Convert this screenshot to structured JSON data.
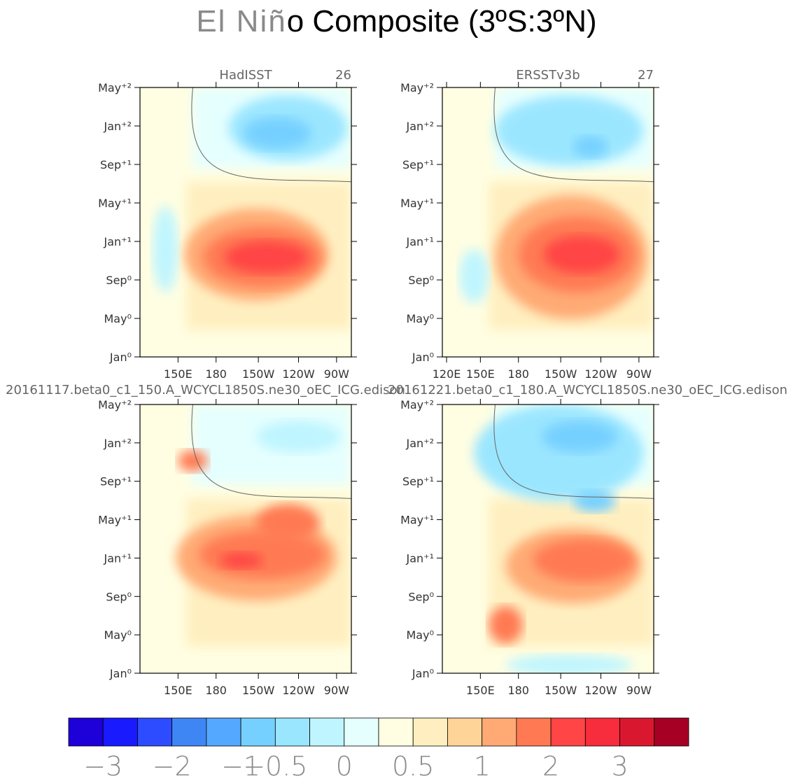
{
  "chart_data": {
    "type": "heatmap",
    "title_light": "El Niñ",
    "title_dark": "o Composite (3ºS:3ºN)",
    "y_ticks": [
      "May⁺²",
      "Jan⁺²",
      "Sep⁺¹",
      "May⁺¹",
      "Jan⁺¹",
      "Sep⁰",
      "May⁰",
      "Jan⁰"
    ],
    "panels": [
      {
        "name": "HadISST",
        "count": "26",
        "x_ticks": [
          "150E",
          "180",
          "150W",
          "120W",
          "90W"
        ],
        "features": [
          {
            "kind": "warm",
            "level": 8,
            "x": 0.55,
            "y": 0.62,
            "rx": 0.34,
            "ry": 0.17
          },
          {
            "kind": "warm",
            "level": 7,
            "x": 0.58,
            "y": 0.63,
            "rx": 0.28,
            "ry": 0.11
          },
          {
            "kind": "warm",
            "level": 6,
            "x": 0.6,
            "y": 0.63,
            "rx": 0.2,
            "ry": 0.06
          },
          {
            "kind": "cool",
            "level": 2,
            "x": 0.7,
            "y": 0.15,
            "rx": 0.28,
            "ry": 0.12
          },
          {
            "kind": "cool",
            "level": 3,
            "x": 0.65,
            "y": 0.17,
            "rx": 0.16,
            "ry": 0.06
          },
          {
            "kind": "cool",
            "level": 1,
            "x": 0.12,
            "y": 0.6,
            "rx": 0.06,
            "ry": 0.16
          }
        ]
      },
      {
        "name": "ERSSTv3b",
        "count": "27",
        "x_ticks": [
          "120E",
          "150E",
          "180",
          "150W",
          "120W",
          "90W"
        ],
        "features": [
          {
            "kind": "warm",
            "level": 8,
            "x": 0.61,
            "y": 0.63,
            "rx": 0.36,
            "ry": 0.23
          },
          {
            "kind": "warm",
            "level": 7,
            "x": 0.64,
            "y": 0.62,
            "rx": 0.28,
            "ry": 0.14
          },
          {
            "kind": "warm",
            "level": 6,
            "x": 0.66,
            "y": 0.62,
            "rx": 0.18,
            "ry": 0.07
          },
          {
            "kind": "cool",
            "level": 2,
            "x": 0.6,
            "y": 0.16,
            "rx": 0.35,
            "ry": 0.13
          },
          {
            "kind": "cool",
            "level": 3,
            "x": 0.7,
            "y": 0.22,
            "rx": 0.08,
            "ry": 0.04
          },
          {
            "kind": "cool",
            "level": 1,
            "x": 0.15,
            "y": 0.7,
            "rx": 0.07,
            "ry": 0.1
          }
        ]
      },
      {
        "name": "20161117.beta0_c1_150.A_WCYCL1850S.ne30_oEC_ICG.edison",
        "count": "",
        "x_ticks": [
          "150E",
          "180",
          "150W",
          "120W",
          "90W"
        ],
        "features": [
          {
            "kind": "warm",
            "level": 8,
            "x": 0.55,
            "y": 0.57,
            "rx": 0.38,
            "ry": 0.16
          },
          {
            "kind": "warm",
            "level": 7,
            "x": 0.58,
            "y": 0.56,
            "rx": 0.3,
            "ry": 0.09
          },
          {
            "kind": "warm",
            "level": 6,
            "x": 0.48,
            "y": 0.58,
            "rx": 0.1,
            "ry": 0.03
          },
          {
            "kind": "warm",
            "level": 7,
            "x": 0.7,
            "y": 0.44,
            "rx": 0.15,
            "ry": 0.07
          },
          {
            "kind": "warm",
            "level": 7,
            "x": 0.25,
            "y": 0.21,
            "rx": 0.07,
            "ry": 0.04
          },
          {
            "kind": "cool",
            "level": 1,
            "x": 0.75,
            "y": 0.12,
            "rx": 0.2,
            "ry": 0.06
          }
        ]
      },
      {
        "name": "20161221.beta0_c1_180.A_WCYCL1850S.ne30_oEC_ICG.edison",
        "count": "",
        "x_ticks": [
          "150E",
          "180",
          "150W",
          "120W",
          "90W"
        ],
        "features": [
          {
            "kind": "cool",
            "level": 2,
            "x": 0.55,
            "y": 0.18,
            "rx": 0.4,
            "ry": 0.18
          },
          {
            "kind": "cool",
            "level": 3,
            "x": 0.65,
            "y": 0.12,
            "rx": 0.18,
            "ry": 0.06
          },
          {
            "kind": "cool",
            "level": 3,
            "x": 0.72,
            "y": 0.36,
            "rx": 0.1,
            "ry": 0.04
          },
          {
            "kind": "warm",
            "level": 8,
            "x": 0.62,
            "y": 0.6,
            "rx": 0.32,
            "ry": 0.14
          },
          {
            "kind": "warm",
            "level": 7,
            "x": 0.67,
            "y": 0.58,
            "rx": 0.24,
            "ry": 0.08
          },
          {
            "kind": "warm",
            "level": 7,
            "x": 0.3,
            "y": 0.82,
            "rx": 0.08,
            "ry": 0.07
          },
          {
            "kind": "cool",
            "level": 1,
            "x": 0.6,
            "y": 0.97,
            "rx": 0.3,
            "ry": 0.04
          }
        ]
      }
    ],
    "colorbar": {
      "colors": [
        "#1e00d9",
        "#1a1aff",
        "#2e4cff",
        "#3f86f5",
        "#55a8ff",
        "#76d0ff",
        "#9be6ff",
        "#bff5ff",
        "#e5ffff",
        "#fffee2",
        "#ffefc0",
        "#ffd498",
        "#ffaa74",
        "#ff7a52",
        "#ff4545",
        "#f72c3c",
        "#d9182f",
        "#a60025"
      ],
      "labels": [
        "−3",
        "−2",
        "−1",
        "−0.5",
        "0",
        "0.5",
        "1",
        "2",
        "3"
      ],
      "label_boundaries": [
        1,
        3,
        5,
        6,
        8,
        10,
        12,
        14,
        16
      ]
    }
  }
}
